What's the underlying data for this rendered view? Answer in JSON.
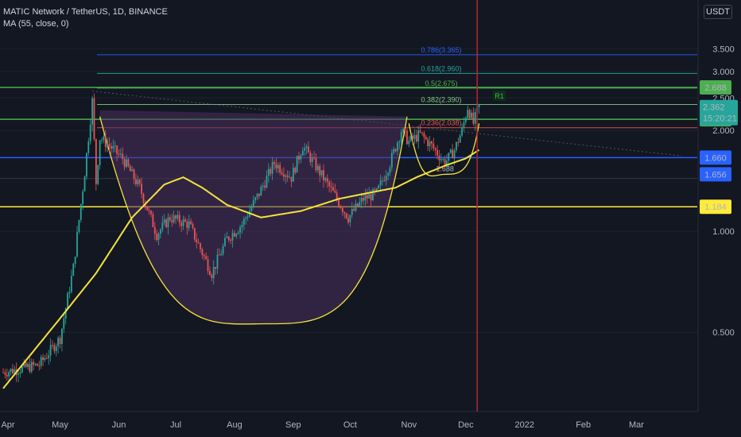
{
  "legend": {
    "symbol": "MATIC Network / TetherUS, 1D, BINANCE",
    "indicator": "MA (55, close, 0)"
  },
  "currency": "USDT",
  "colors": {
    "background": "#131722",
    "up": "#26a69a",
    "down": "#ef5350",
    "ma": "#f5e33b",
    "green_level": "#4caf50",
    "blue_level": "#2962ff",
    "yellow_level": "#ffeb3b",
    "cup_fill": "#4a2f5e",
    "vertical_marker": "#b22833"
  },
  "chart_data": {
    "type": "candlestick",
    "title": "MATIC Network / TetherUS, 1D, BINANCE",
    "y_scale": "log",
    "ylim": [
      0.29,
      4.9
    ],
    "y_ticks": [
      "3.500",
      "3.000",
      "2.500",
      "2.000",
      "1.000",
      "0.500"
    ],
    "x_ticks": [
      "Apr",
      "May",
      "Jun",
      "Jul",
      "Aug",
      "Sep",
      "Oct",
      "Nov",
      "Dec",
      "2022",
      "Feb",
      "Mar"
    ],
    "x_range": [
      "2021-04-01",
      "2022-03-31"
    ],
    "price_anchors": [
      {
        "date": "2021-04-01",
        "close": 0.38
      },
      {
        "date": "2021-04-20",
        "close": 0.4
      },
      {
        "date": "2021-05-01",
        "close": 0.48
      },
      {
        "date": "2021-05-08",
        "close": 0.78
      },
      {
        "date": "2021-05-14",
        "close": 1.5
      },
      {
        "date": "2021-05-18",
        "close": 2.45
      },
      {
        "date": "2021-05-20",
        "close": 1.4
      },
      {
        "date": "2021-05-22",
        "close": 1.9
      },
      {
        "date": "2021-05-27",
        "close": 1.8
      },
      {
        "date": "2021-06-03",
        "close": 1.65
      },
      {
        "date": "2021-06-12",
        "close": 1.35
      },
      {
        "date": "2021-06-21",
        "close": 0.98
      },
      {
        "date": "2021-06-28",
        "close": 1.1
      },
      {
        "date": "2021-07-08",
        "close": 1.05
      },
      {
        "date": "2021-07-20",
        "close": 0.75
      },
      {
        "date": "2021-07-28",
        "close": 0.95
      },
      {
        "date": "2021-08-05",
        "close": 1.05
      },
      {
        "date": "2021-08-14",
        "close": 1.3
      },
      {
        "date": "2021-08-22",
        "close": 1.6
      },
      {
        "date": "2021-08-31",
        "close": 1.45
      },
      {
        "date": "2021-09-06",
        "close": 1.8
      },
      {
        "date": "2021-09-15",
        "close": 1.5
      },
      {
        "date": "2021-09-24",
        "close": 1.25
      },
      {
        "date": "2021-09-30",
        "close": 1.1
      },
      {
        "date": "2021-10-08",
        "close": 1.25
      },
      {
        "date": "2021-10-15",
        "close": 1.3
      },
      {
        "date": "2021-10-22",
        "close": 1.6
      },
      {
        "date": "2021-10-28",
        "close": 2.0
      },
      {
        "date": "2021-11-01",
        "close": 1.85
      },
      {
        "date": "2021-11-07",
        "close": 1.95
      },
      {
        "date": "2021-11-13",
        "close": 1.8
      },
      {
        "date": "2021-11-20",
        "close": 1.6
      },
      {
        "date": "2021-11-25",
        "close": 1.75
      },
      {
        "date": "2021-11-29",
        "close": 2.0
      },
      {
        "date": "2021-12-02",
        "close": 2.35
      },
      {
        "date": "2021-12-05",
        "close": 2.1
      },
      {
        "date": "2021-12-08",
        "close": 2.362
      }
    ],
    "ma_anchors": [
      {
        "date": "2021-04-01",
        "value": 0.34
      },
      {
        "date": "2021-05-01",
        "value": 0.55
      },
      {
        "date": "2021-05-20",
        "value": 0.75
      },
      {
        "date": "2021-06-08",
        "value": 1.1
      },
      {
        "date": "2021-06-25",
        "value": 1.38
      },
      {
        "date": "2021-07-05",
        "value": 1.45
      },
      {
        "date": "2021-07-15",
        "value": 1.35
      },
      {
        "date": "2021-07-28",
        "value": 1.2
      },
      {
        "date": "2021-08-15",
        "value": 1.1
      },
      {
        "date": "2021-09-05",
        "value": 1.15
      },
      {
        "date": "2021-09-25",
        "value": 1.25
      },
      {
        "date": "2021-10-10",
        "value": 1.3
      },
      {
        "date": "2021-10-25",
        "value": 1.35
      },
      {
        "date": "2021-11-05",
        "value": 1.45
      },
      {
        "date": "2021-11-20",
        "value": 1.57
      },
      {
        "date": "2021-12-01",
        "value": 1.65
      },
      {
        "date": "2021-12-08",
        "value": 1.75
      }
    ],
    "horizontal_levels": [
      {
        "value": 2.688,
        "label": "2.688",
        "role": "green"
      },
      {
        "value": 2.16,
        "label": "2.160",
        "role": "green"
      },
      {
        "value": 1.66,
        "label": "1.660",
        "role": "blue"
      },
      {
        "value": 1.184,
        "label": "1.184",
        "role": "yellow"
      },
      {
        "value": 1.656,
        "label": "1.656",
        "role": "blue-label"
      }
    ],
    "fib_levels": [
      {
        "value": 3.365,
        "label": "0.786(3.365)",
        "color": "#2962ff"
      },
      {
        "value": 2.96,
        "label": "0.618(2.960)",
        "color": "#26a69a"
      },
      {
        "value": 2.675,
        "label": "0.5(2.675)",
        "color": "#4caf50"
      },
      {
        "value": 2.39,
        "label": "0.382(2.390)",
        "color": "#81c784"
      },
      {
        "value": 2.038,
        "label": "0.236(2.038)",
        "color": "#ef5350"
      }
    ],
    "current_price": {
      "value": 2.362,
      "label": "2.362",
      "countdown": "15:20:21"
    },
    "marker_label": "R1",
    "small_cup_label": "1.688",
    "vertical_marker_date": "2021-12-07",
    "cup": {
      "start_date": "2021-05-22",
      "bottom_date": "2021-08-18",
      "end_date": "2021-10-31",
      "rim": 2.2,
      "bottom": 0.53
    },
    "small_cup": {
      "start_date": "2021-11-01",
      "bottom_date": "2021-11-20",
      "end_date": "2021-12-08",
      "rim": 2.1,
      "bottom": 1.48
    }
  }
}
